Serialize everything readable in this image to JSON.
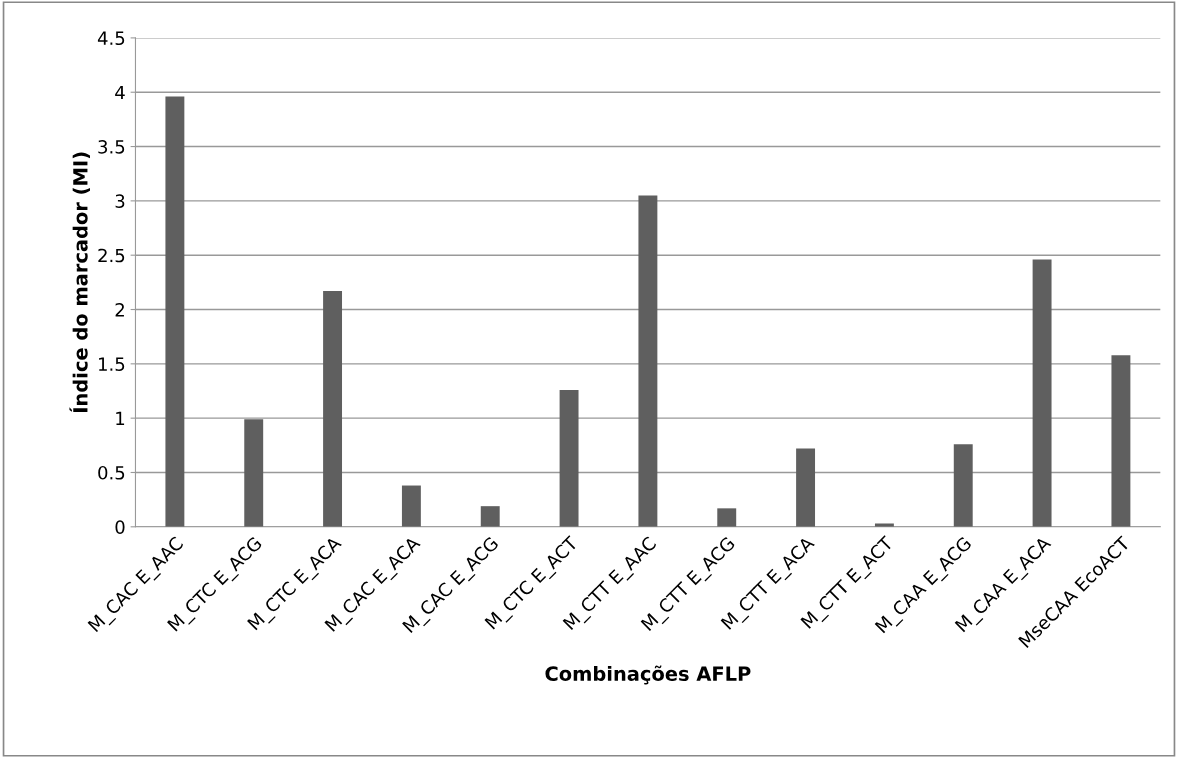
{
  "chart_data": {
    "type": "bar",
    "xlabel": "Combinações AFLP",
    "ylabel": "Índice do marcador (MI)",
    "categories": [
      "M_CAC E_AAC",
      "M_CTC E_ACG",
      "M_CTC E_ACA",
      "M_CAC E_ACA",
      "M_CAC E_ACG",
      "M_CTC E_ACT",
      "M_CTT E_AAC",
      "M_CTT E_ACG",
      "M_CTT E_ACA",
      "M_CTT E_ACT",
      "M_CAA E_ACG",
      "M_CAA E_ACA",
      "MseCAA EcoACT"
    ],
    "values": [
      3.96,
      0.99,
      2.17,
      0.38,
      0.19,
      1.26,
      3.05,
      0.17,
      0.72,
      0.03,
      0.76,
      2.46,
      1.58
    ],
    "color": "#5f5f5f",
    "ylim": [
      0,
      4.5
    ],
    "yticks": [
      0,
      0.5,
      1,
      1.5,
      2,
      2.5,
      3,
      3.5,
      4,
      4.5
    ],
    "grid": "y"
  }
}
